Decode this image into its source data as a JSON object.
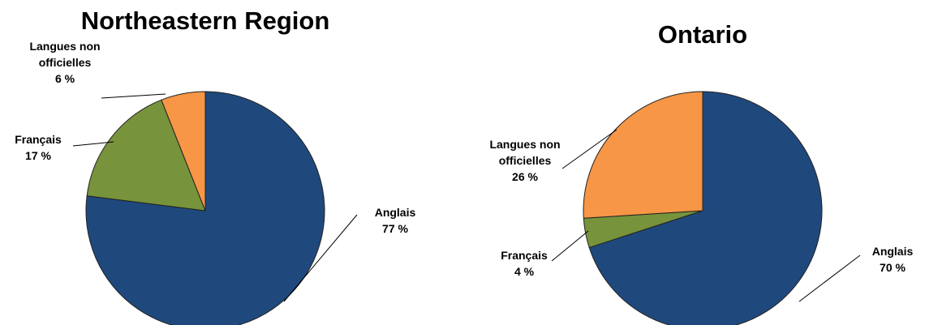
{
  "chart_data": [
    {
      "type": "pie",
      "title": "Northeastern Region",
      "categories": [
        "Anglais",
        "Français",
        "Langues non officielles"
      ],
      "values": [
        77,
        17,
        6
      ],
      "value_labels": [
        "77 %",
        "17 %",
        "6 %"
      ],
      "colors": [
        "#1f497d",
        "#77933c",
        "#f79646"
      ]
    },
    {
      "type": "pie",
      "title": "Ontario",
      "categories": [
        "Anglais",
        "Français",
        "Langues non officielles"
      ],
      "values": [
        70,
        4,
        26
      ],
      "value_labels": [
        "70 %",
        "4 %",
        "26 %"
      ],
      "colors": [
        "#1f497d",
        "#77933c",
        "#f79646"
      ]
    }
  ]
}
